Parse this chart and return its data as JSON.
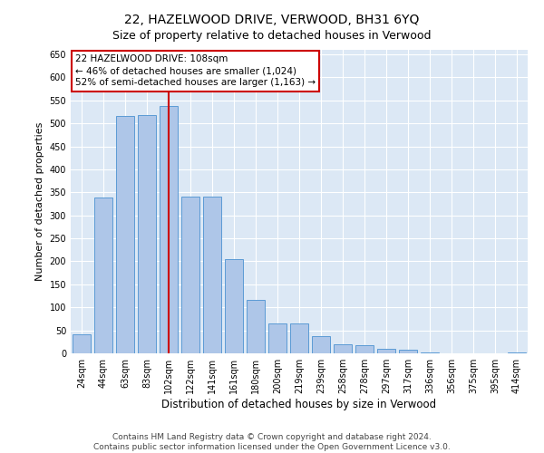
{
  "title": "22, HAZELWOOD DRIVE, VERWOOD, BH31 6YQ",
  "subtitle": "Size of property relative to detached houses in Verwood",
  "xlabel": "Distribution of detached houses by size in Verwood",
  "ylabel": "Number of detached properties",
  "bar_labels": [
    "24sqm",
    "44sqm",
    "63sqm",
    "83sqm",
    "102sqm",
    "122sqm",
    "141sqm",
    "161sqm",
    "180sqm",
    "200sqm",
    "219sqm",
    "239sqm",
    "258sqm",
    "278sqm",
    "297sqm",
    "317sqm",
    "336sqm",
    "356sqm",
    "375sqm",
    "395sqm",
    "414sqm"
  ],
  "bar_values": [
    42,
    338,
    517,
    519,
    537,
    341,
    341,
    205,
    117,
    65,
    65,
    38,
    20,
    18,
    9,
    7,
    2,
    0,
    0,
    0,
    2
  ],
  "bar_color": "#aec6e8",
  "bar_edge_color": "#5b9bd5",
  "vline_x_index": 4,
  "vline_color": "#cc0000",
  "annotation_text": "22 HAZELWOOD DRIVE: 108sqm\n← 46% of detached houses are smaller (1,024)\n52% of semi-detached houses are larger (1,163) →",
  "annotation_box_color": "#ffffff",
  "annotation_box_edge": "#cc0000",
  "ylim": [
    0,
    660
  ],
  "yticks": [
    0,
    50,
    100,
    150,
    200,
    250,
    300,
    350,
    400,
    450,
    500,
    550,
    600,
    650
  ],
  "background_color": "#dce8f5",
  "footer_text": "Contains HM Land Registry data © Crown copyright and database right 2024.\nContains public sector information licensed under the Open Government Licence v3.0.",
  "title_fontsize": 10,
  "subtitle_fontsize": 9,
  "xlabel_fontsize": 8.5,
  "ylabel_fontsize": 8,
  "tick_fontsize": 7,
  "footer_fontsize": 6.5,
  "annotation_fontsize": 7.5
}
